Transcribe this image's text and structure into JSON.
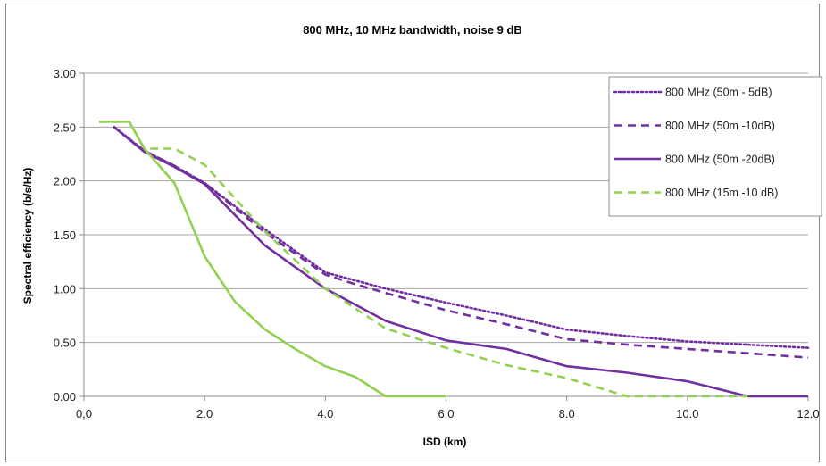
{
  "chart_data": {
    "type": "line",
    "title": "800 MHz, 10 MHz bandwidth, noise 9 dB",
    "xlabel": "ISD (km)",
    "ylabel": "Spectral efficiency (b/s/Hz)",
    "xlim": [
      0,
      12
    ],
    "ylim": [
      0,
      3
    ],
    "x_ticks": [
      0,
      2,
      4,
      6,
      8,
      10,
      12
    ],
    "x_tick_labels": [
      "0,0",
      "2.0",
      "4.0",
      "6.0",
      "8.0",
      "10.0",
      "12.0"
    ],
    "y_ticks": [
      0,
      0.5,
      1,
      1.5,
      2,
      2.5,
      3
    ],
    "y_tick_labels": [
      "0.00",
      "0.50",
      "1.00",
      "1.50",
      "2.00",
      "2.50",
      "3.00"
    ],
    "grid": "horizontal",
    "legend_position": "top-right",
    "series": [
      {
        "name": "800 MHz (50m - 5dB)",
        "color": "#7030a0",
        "style": "dotted",
        "points": [
          [
            0.5,
            2.5
          ],
          [
            1,
            2.28
          ],
          [
            1.5,
            2.14
          ],
          [
            2,
            1.98
          ],
          [
            3,
            1.55
          ],
          [
            4,
            1.15
          ],
          [
            5,
            1.0
          ],
          [
            6,
            0.87
          ],
          [
            7,
            0.75
          ],
          [
            8,
            0.62
          ],
          [
            9,
            0.56
          ],
          [
            10,
            0.51
          ],
          [
            11,
            0.48
          ],
          [
            12,
            0.45
          ]
        ]
      },
      {
        "name": "800 MHz (50m -10dB)",
        "color": "#7030a0",
        "style": "dashed",
        "points": [
          [
            0.5,
            2.5
          ],
          [
            1,
            2.28
          ],
          [
            1.5,
            2.14
          ],
          [
            2,
            1.98
          ],
          [
            3,
            1.52
          ],
          [
            4,
            1.13
          ],
          [
            4.5,
            1.04
          ],
          [
            5,
            0.96
          ],
          [
            6,
            0.8
          ],
          [
            7,
            0.67
          ],
          [
            8,
            0.53
          ],
          [
            9,
            0.48
          ],
          [
            10,
            0.44
          ],
          [
            11,
            0.4
          ],
          [
            12,
            0.36
          ]
        ]
      },
      {
        "name": "800 MHz (50m -20dB)",
        "color": "#7030a0",
        "style": "solid",
        "points": [
          [
            0.5,
            2.5
          ],
          [
            1,
            2.27
          ],
          [
            1.5,
            2.13
          ],
          [
            2,
            1.97
          ],
          [
            3,
            1.4
          ],
          [
            4,
            1.0
          ],
          [
            5,
            0.7
          ],
          [
            6,
            0.52
          ],
          [
            7,
            0.44
          ],
          [
            8,
            0.28
          ],
          [
            9,
            0.22
          ],
          [
            10,
            0.14
          ],
          [
            11,
            0.0
          ],
          [
            12,
            0.0
          ]
        ]
      },
      {
        "name": "800 MHz (15m -10 dB)",
        "color": "#92d050",
        "style": "dashed",
        "points": [
          [
            0.25,
            2.55
          ],
          [
            0.75,
            2.55
          ],
          [
            1,
            2.3
          ],
          [
            1.5,
            2.3
          ],
          [
            2,
            2.15
          ],
          [
            3,
            1.53
          ],
          [
            4,
            1.0
          ],
          [
            5,
            0.63
          ],
          [
            6,
            0.45
          ],
          [
            7,
            0.29
          ],
          [
            8,
            0.17
          ],
          [
            9,
            0.0
          ],
          [
            10,
            0.0
          ],
          [
            11,
            0.0
          ]
        ]
      },
      {
        "name": "",
        "color": "#92d050",
        "style": "solid",
        "points": [
          [
            0.25,
            2.55
          ],
          [
            0.75,
            2.55
          ],
          [
            1,
            2.3
          ],
          [
            1.5,
            1.98
          ],
          [
            2,
            1.3
          ],
          [
            2.5,
            0.88
          ],
          [
            3,
            0.62
          ],
          [
            3.5,
            0.44
          ],
          [
            4,
            0.28
          ],
          [
            4.5,
            0.18
          ],
          [
            5,
            0.0
          ],
          [
            6,
            0.0
          ]
        ]
      }
    ]
  }
}
